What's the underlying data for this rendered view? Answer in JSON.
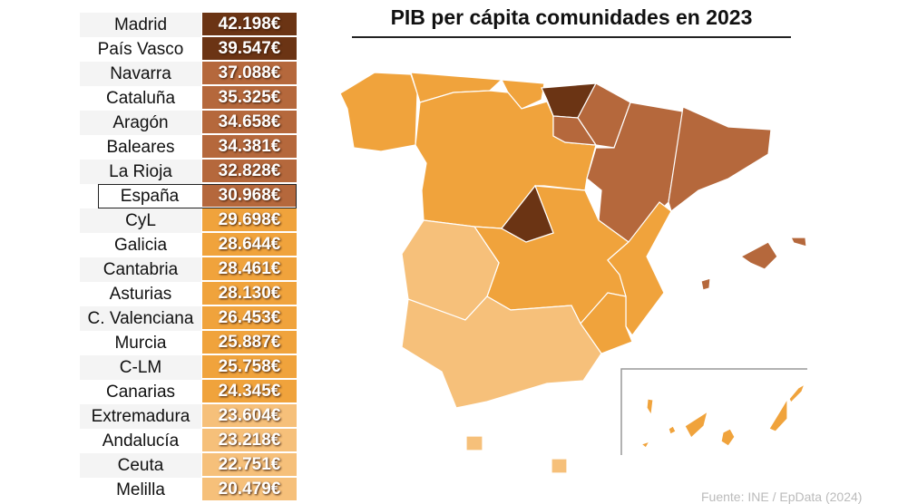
{
  "chart_data": {
    "type": "table",
    "title": "PIB per cápita comunidades en 2023",
    "source": "Fuente: INE / EpData (2024)",
    "colors": {
      "dark": "#6b3414",
      "medium": "#b5683c",
      "orange": "#f0a33c",
      "light": "#f6c07a"
    },
    "rows": [
      {
        "name": "Madrid",
        "value": "42.198€",
        "color": "#6b3414"
      },
      {
        "name": "País Vasco",
        "value": "39.547€",
        "color": "#6b3414"
      },
      {
        "name": "Navarra",
        "value": "37.088€",
        "color": "#b5683c"
      },
      {
        "name": "Cataluña",
        "value": "35.325€",
        "color": "#b5683c"
      },
      {
        "name": "Aragón",
        "value": "34.658€",
        "color": "#b5683c"
      },
      {
        "name": "Baleares",
        "value": "34.381€",
        "color": "#b5683c"
      },
      {
        "name": "La Rioja",
        "value": "32.828€",
        "color": "#b5683c"
      },
      {
        "name": "España",
        "value": "30.968€",
        "color": "#b5683c",
        "highlight": true
      },
      {
        "name": "CyL",
        "value": "29.698€",
        "color": "#f0a33c"
      },
      {
        "name": "Galicia",
        "value": "28.644€",
        "color": "#f0a33c"
      },
      {
        "name": "Cantabria",
        "value": "28.461€",
        "color": "#f0a33c"
      },
      {
        "name": "Asturias",
        "value": "28.130€",
        "color": "#f0a33c"
      },
      {
        "name": "C. Valenciana",
        "value": "26.453€",
        "color": "#f0a33c"
      },
      {
        "name": "Murcia",
        "value": "25.887€",
        "color": "#f0a33c"
      },
      {
        "name": "C-LM",
        "value": "25.758€",
        "color": "#f0a33c"
      },
      {
        "name": "Canarias",
        "value": "24.345€",
        "color": "#f0a33c"
      },
      {
        "name": "Extremadura",
        "value": "23.604€",
        "color": "#f6c07a"
      },
      {
        "name": "Andalucía",
        "value": "23.218€",
        "color": "#f6c07a"
      },
      {
        "name": "Ceuta",
        "value": "22.751€",
        "color": "#f6c07a"
      },
      {
        "name": "Melilla",
        "value": "20.479€",
        "color": "#f6c07a"
      }
    ]
  }
}
